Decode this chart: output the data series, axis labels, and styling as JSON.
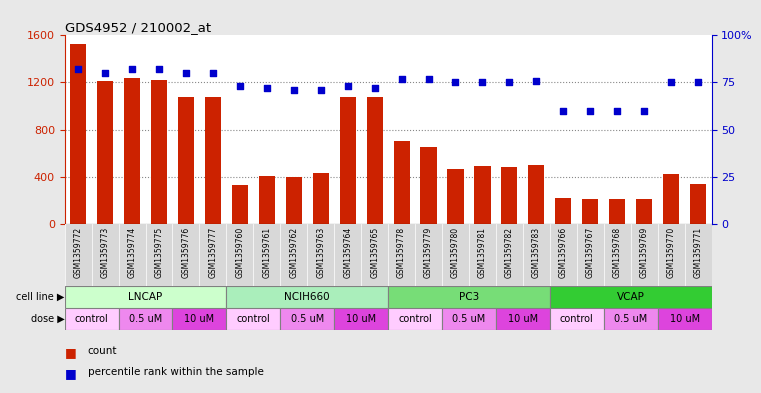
{
  "title": "GDS4952 / 210002_at",
  "samples": [
    "GSM1359772",
    "GSM1359773",
    "GSM1359774",
    "GSM1359775",
    "GSM1359776",
    "GSM1359777",
    "GSM1359760",
    "GSM1359761",
    "GSM1359762",
    "GSM1359763",
    "GSM1359764",
    "GSM1359765",
    "GSM1359778",
    "GSM1359779",
    "GSM1359780",
    "GSM1359781",
    "GSM1359782",
    "GSM1359783",
    "GSM1359766",
    "GSM1359767",
    "GSM1359768",
    "GSM1359769",
    "GSM1359770",
    "GSM1359771"
  ],
  "counts": [
    1530,
    1210,
    1240,
    1220,
    1080,
    1080,
    330,
    410,
    400,
    430,
    1080,
    1075,
    700,
    650,
    470,
    490,
    480,
    500,
    220,
    210,
    210,
    215,
    420,
    340
  ],
  "percentile_ranks": [
    82,
    80,
    82,
    82,
    80,
    80,
    73,
    72,
    71,
    71,
    73,
    72,
    77,
    77,
    75,
    75,
    75,
    76,
    60,
    60,
    60,
    60,
    75,
    75
  ],
  "cell_lines": [
    {
      "name": "LNCAP",
      "start": 0,
      "end": 6,
      "color": "#ccffcc"
    },
    {
      "name": "NCIH660",
      "start": 6,
      "end": 12,
      "color": "#99ee99"
    },
    {
      "name": "PC3",
      "start": 12,
      "end": 18,
      "color": "#55cc55"
    },
    {
      "name": "VCAP",
      "start": 18,
      "end": 24,
      "color": "#33bb33"
    }
  ],
  "doses": [
    {
      "label": "control",
      "start": 0,
      "end": 2,
      "color": "#ffccff"
    },
    {
      "label": "0.5 uM",
      "start": 2,
      "end": 4,
      "color": "#ee88ee"
    },
    {
      "label": "10 uM",
      "start": 4,
      "end": 6,
      "color": "#dd44dd"
    },
    {
      "label": "control",
      "start": 6,
      "end": 8,
      "color": "#ffccff"
    },
    {
      "label": "0.5 uM",
      "start": 8,
      "end": 10,
      "color": "#ee88ee"
    },
    {
      "label": "10 uM",
      "start": 10,
      "end": 12,
      "color": "#dd44dd"
    },
    {
      "label": "control",
      "start": 12,
      "end": 14,
      "color": "#ffccff"
    },
    {
      "label": "0.5 uM",
      "start": 14,
      "end": 16,
      "color": "#ee88ee"
    },
    {
      "label": "10 uM",
      "start": 16,
      "end": 18,
      "color": "#dd44dd"
    },
    {
      "label": "control",
      "start": 18,
      "end": 20,
      "color": "#ffccff"
    },
    {
      "label": "0.5 uM",
      "start": 20,
      "end": 22,
      "color": "#ee88ee"
    },
    {
      "label": "10 uM",
      "start": 22,
      "end": 24,
      "color": "#dd44dd"
    }
  ],
  "bar_color": "#cc2200",
  "dot_color": "#0000cc",
  "ylim_left": [
    0,
    1600
  ],
  "ylim_right": [
    0,
    100
  ],
  "yticks_left": [
    0,
    400,
    800,
    1200,
    1600
  ],
  "yticks_right": [
    0,
    25,
    50,
    75,
    100
  ],
  "bg_color": "#ffffff",
  "plot_bg": "#ffffff",
  "outer_bg": "#e8e8e8"
}
